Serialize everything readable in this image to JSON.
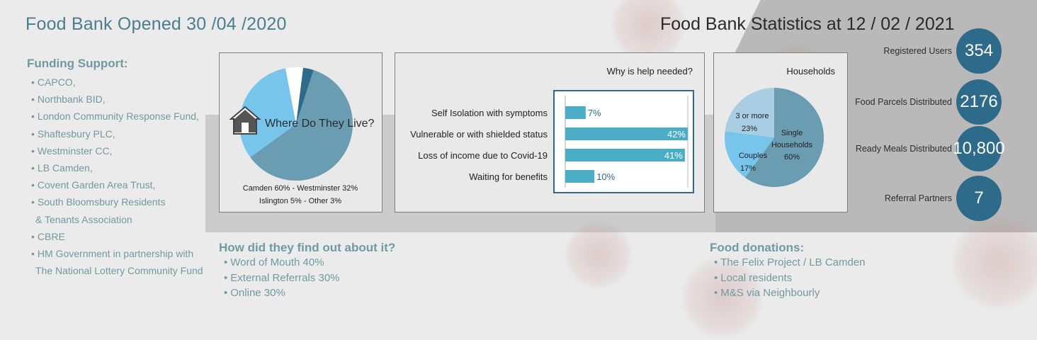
{
  "header": {
    "left_title": "Food Bank Opened 30 /04 /2020",
    "right_title": "Food Bank Statistics at 12 / 02 / 2021"
  },
  "funding": {
    "heading": "Funding Support:",
    "items": [
      "CAPCO,",
      "Northbank BID,",
      "London Community Response Fund,",
      "Shaftesbury PLC,",
      "Westminster CC,",
      "LB Camden,",
      "Covent Garden Area Trust,",
      "South Bloomsbury Residents",
      "& Tenants Association",
      "CBRE",
      "HM Government in partnership with",
      "The National Lottery Community Fund"
    ]
  },
  "find_out": {
    "heading": "How did they find out about it?",
    "items": [
      "Word of Mouth 40%",
      "External Referrals 30%",
      "Online 30%"
    ]
  },
  "donations": {
    "heading": "Food donations:",
    "items": [
      "The Felix Project / LB Camden",
      "Local residents",
      "M&S via Neighbourly"
    ]
  },
  "stats": [
    {
      "label": "Registered Users",
      "value": "354"
    },
    {
      "label": "Food Parcels Distributed",
      "value": "2176"
    },
    {
      "label": "Ready Meals Distributed",
      "value": "10,800"
    },
    {
      "label": "Referral Partners",
      "value": "7"
    }
  ],
  "colors": {
    "accent_teal": "#4c7d8e",
    "light_teal": "#6f9aa2",
    "circle_blue": "#2e6a8a",
    "bar_blue": "#4bacc6"
  },
  "chart_data": [
    {
      "type": "pie",
      "title": "Where Do They Live?",
      "categories": [
        "Camden",
        "Westminster",
        "Islington",
        "Other"
      ],
      "values": [
        60,
        32,
        5,
        3
      ],
      "colors": [
        "#6a9cb2",
        "#78c5ec",
        "#ffffff",
        "#2e6a8a"
      ],
      "caption_line1": "Camden 60% - Westminster 32%",
      "caption_line2": "Islington 5% - Other 3%",
      "icon": "house-icon"
    },
    {
      "type": "bar",
      "orientation": "horizontal",
      "title": "Why is help needed?",
      "categories": [
        "Self Isolation with symptoms",
        "Vulnerable or with shielded status",
        "Loss of income due to Covid-19",
        "Waiting for benefits"
      ],
      "values": [
        7,
        42,
        41,
        10
      ],
      "value_labels": [
        "7%",
        "42%",
        "41%",
        "10%"
      ],
      "xlim": [
        0,
        42
      ],
      "grid": false
    },
    {
      "type": "pie",
      "title": "Households",
      "categories": [
        "Single Households",
        "Couples",
        "3 or more"
      ],
      "values": [
        60,
        17,
        23
      ],
      "colors": [
        "#6a9cb2",
        "#78c5ec",
        "#a9cde2"
      ],
      "labels": [
        {
          "line1": "Single",
          "line2": "Households",
          "line3": "60%"
        },
        {
          "line1": "Couples",
          "line2": "17%"
        },
        {
          "line1": "3 or more",
          "line2": "23%"
        }
      ]
    }
  ]
}
